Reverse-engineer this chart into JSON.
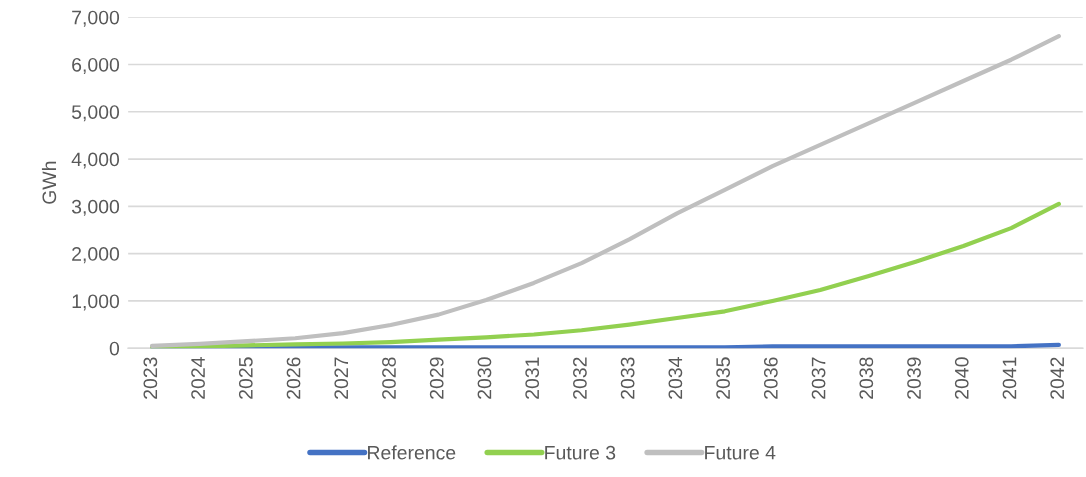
{
  "chart_data": {
    "type": "line",
    "ylabel": "GWh",
    "categories": [
      "2023",
      "2024",
      "2025",
      "2026",
      "2027",
      "2028",
      "2029",
      "2030",
      "2031",
      "2032",
      "2033",
      "2034",
      "2035",
      "2036",
      "2037",
      "2038",
      "2039",
      "2040",
      "2041",
      "2042"
    ],
    "series": [
      {
        "name": "Reference",
        "color": "#4472c4",
        "values": [
          20,
          20,
          20,
          20,
          20,
          20,
          20,
          20,
          20,
          20,
          20,
          20,
          20,
          40,
          40,
          40,
          40,
          40,
          40,
          70
        ]
      },
      {
        "name": "Future 3",
        "color": "#92d050",
        "values": [
          20,
          40,
          60,
          80,
          100,
          130,
          180,
          230,
          290,
          380,
          500,
          640,
          780,
          1000,
          1230,
          1520,
          1830,
          2160,
          2540,
          3050
        ]
      },
      {
        "name": "Future 4",
        "color": "#bfbfbf",
        "values": [
          50,
          90,
          150,
          210,
          320,
          490,
          710,
          1020,
          1380,
          1800,
          2300,
          2850,
          3350,
          3850,
          4300,
          4750,
          5200,
          5650,
          6100,
          6600
        ]
      }
    ],
    "ylim": [
      0,
      7000
    ],
    "yticks": [
      0,
      {
        "value": 1000,
        "label": "1,000"
      },
      {
        "value": 2000,
        "label": "2,000"
      },
      {
        "value": 3000,
        "label": "3,000"
      },
      {
        "value": 4000,
        "label": "4,000"
      },
      {
        "value": 5000,
        "label": "5,000"
      },
      {
        "value": 6000,
        "label": "6,000"
      },
      {
        "value": 7000,
        "label": "7,000"
      }
    ],
    "grid": "y",
    "legend": "bottom",
    "marker": "none",
    "line_style": "solid"
  }
}
